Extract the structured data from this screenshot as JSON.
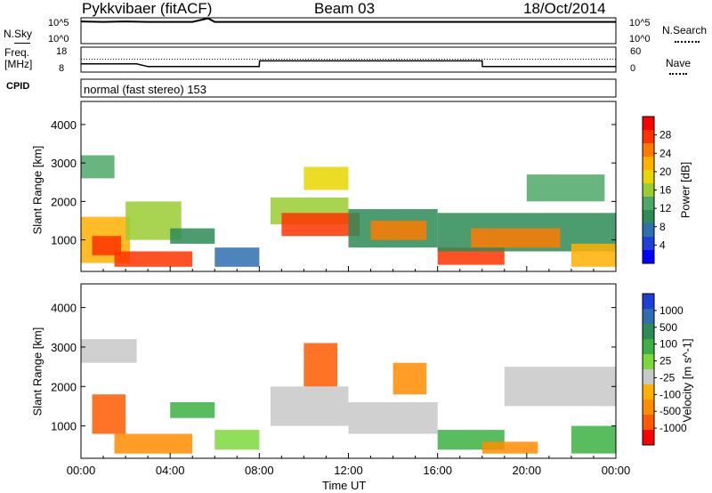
{
  "header": {
    "radar": "Pykkvibaer (fitACF)",
    "beam": "Beam 03",
    "date": "18/Oct/2014"
  },
  "nsky_panel": {
    "left_label": "N.Sky",
    "right_label": "N.Search",
    "left_ticks": [
      "10^5",
      "10^0"
    ],
    "right_ticks": [
      "10^5",
      "10^0"
    ]
  },
  "freq_panel": {
    "left_label_1": "Freq.",
    "left_label_2": "[MHz]",
    "right_label": "Nave",
    "left_ticks": [
      "18",
      "8"
    ],
    "right_ticks": [
      "60",
      "0"
    ]
  },
  "cpid": {
    "label": "CPID",
    "value": "normal (fast stereo) 153"
  },
  "power_panel": {
    "ylabel": "Slant Range [km]",
    "colorbar_label": "Power [dB]",
    "colorbar_ticks": [
      "28",
      "24",
      "20",
      "16",
      "12",
      "8",
      "4"
    ],
    "colors": [
      "#ff0000",
      "#ff3300",
      "#ff7b00",
      "#ffb000",
      "#e8d600",
      "#9acd32",
      "#4ea86a",
      "#2e8b57",
      "#2f6fb0",
      "#1f3fd9",
      "#0000ff"
    ]
  },
  "velocity_panel": {
    "ylabel": "Slant Range [km]",
    "colorbar_label": "Velocity [m s^-1]",
    "colorbar_ticks": [
      "1000",
      "500",
      "100",
      "25",
      "-25",
      "-100",
      "-500",
      "-1000"
    ],
    "colors": [
      "#1f3fd9",
      "#2f6fb0",
      "#2e8b57",
      "#3cb043",
      "#7cd83c",
      "#c8c8c8",
      "#ffb000",
      "#ff8c00",
      "#ff5a00",
      "#ff0000"
    ]
  },
  "xaxis": {
    "label": "Time UT",
    "ticks": [
      "00:00",
      "04:00",
      "08:00",
      "12:00",
      "16:00",
      "20:00",
      "00:00"
    ]
  },
  "chart_data": [
    {
      "type": "line",
      "title": "N.Sky / N.Search",
      "x": [
        0,
        1,
        2,
        3,
        4,
        5,
        5.7,
        6,
        8,
        10,
        12,
        14,
        16,
        18,
        20,
        22,
        24
      ],
      "series": [
        {
          "name": "N.Sky",
          "values": [
            4.3,
            4.2,
            4.3,
            4.2,
            4.2,
            4.2,
            4.9,
            4.2,
            4.2,
            4.2,
            4.2,
            4.2,
            4.2,
            4.2,
            4.2,
            4.2,
            4.2
          ]
        }
      ],
      "ylim": [
        0,
        5
      ]
    },
    {
      "type": "line",
      "title": "Freq. [MHz] / Nave",
      "x": [
        0,
        2.5,
        3.0,
        8.0,
        8.01,
        18.0,
        18.01,
        24
      ],
      "series": [
        {
          "name": "Freq.",
          "values": [
            11.3,
            11.3,
            10.2,
            10.2,
            12.5,
            12.5,
            10.2,
            10.2
          ]
        },
        {
          "name": "Nave",
          "values": [
            31,
            31,
            31,
            31,
            31,
            31,
            31,
            31
          ]
        }
      ],
      "ylim": [
        8,
        18
      ]
    },
    {
      "type": "heatmap",
      "title": "Power [dB]",
      "xlabel": "Time UT",
      "ylabel": "Slant Range [km]",
      "xlim": [
        0,
        24
      ],
      "ylim": [
        180,
        4600
      ],
      "colorbar": [
        4,
        8,
        12,
        16,
        20,
        24,
        28
      ],
      "bands": [
        {
          "t0": 0.0,
          "t1": 2.2,
          "r0": 400,
          "r1": 1600,
          "v": 20
        },
        {
          "t0": 0.5,
          "t1": 1.8,
          "r0": 600,
          "r1": 1100,
          "v": 27
        },
        {
          "t0": 0.0,
          "t1": 1.5,
          "r0": 2600,
          "r1": 3200,
          "v": 12
        },
        {
          "t0": 1.5,
          "t1": 5.0,
          "r0": 300,
          "r1": 700,
          "v": 26
        },
        {
          "t0": 2.0,
          "t1": 4.5,
          "r0": 1000,
          "r1": 2000,
          "v": 14
        },
        {
          "t0": 4.0,
          "t1": 6.0,
          "r0": 900,
          "r1": 1300,
          "v": 8
        },
        {
          "t0": 6.0,
          "t1": 8.0,
          "r0": 300,
          "r1": 800,
          "v": 6
        },
        {
          "t0": 8.5,
          "t1": 12.0,
          "r0": 1400,
          "r1": 2100,
          "v": 14
        },
        {
          "t0": 9.0,
          "t1": 12.5,
          "r0": 1100,
          "r1": 1700,
          "v": 26
        },
        {
          "t0": 10.0,
          "t1": 12.0,
          "r0": 2300,
          "r1": 2900,
          "v": 17
        },
        {
          "t0": 12.0,
          "t1": 16.0,
          "r0": 800,
          "r1": 1800,
          "v": 10
        },
        {
          "t0": 13.0,
          "t1": 15.5,
          "r0": 1000,
          "r1": 1500,
          "v": 25
        },
        {
          "t0": 16.0,
          "t1": 19.0,
          "r0": 350,
          "r1": 800,
          "v": 27
        },
        {
          "t0": 16.0,
          "t1": 24.0,
          "r0": 700,
          "r1": 1700,
          "v": 10
        },
        {
          "t0": 17.5,
          "t1": 21.5,
          "r0": 800,
          "r1": 1300,
          "v": 24
        },
        {
          "t0": 20.0,
          "t1": 23.5,
          "r0": 2000,
          "r1": 2700,
          "v": 12
        },
        {
          "t0": 22.0,
          "t1": 24.0,
          "r0": 300,
          "r1": 900,
          "v": 20
        }
      ]
    },
    {
      "type": "heatmap",
      "title": "Velocity [m s^-1]",
      "xlabel": "Time UT",
      "ylabel": "Slant Range [km]",
      "xlim": [
        0,
        24
      ],
      "ylim": [
        180,
        4600
      ],
      "colorbar": [
        -1000,
        -500,
        -100,
        -25,
        25,
        100,
        500,
        1000
      ],
      "bands": [
        {
          "t0": 0.0,
          "t1": 2.5,
          "r0": 2600,
          "r1": 3200,
          "v": 0
        },
        {
          "t0": 0.5,
          "t1": 2.0,
          "r0": 800,
          "r1": 1800,
          "v": -600
        },
        {
          "t0": 1.5,
          "t1": 5.0,
          "r0": 300,
          "r1": 800,
          "v": -200
        },
        {
          "t0": 4.0,
          "t1": 6.0,
          "r0": 1200,
          "r1": 1600,
          "v": 150
        },
        {
          "t0": 6.0,
          "t1": 8.0,
          "r0": 400,
          "r1": 900,
          "v": 60
        },
        {
          "t0": 8.5,
          "t1": 12.0,
          "r0": 1000,
          "r1": 2000,
          "v": 0
        },
        {
          "t0": 10.0,
          "t1": 11.5,
          "r0": 2000,
          "r1": 3100,
          "v": -500
        },
        {
          "t0": 12.0,
          "t1": 16.0,
          "r0": 800,
          "r1": 1600,
          "v": 0
        },
        {
          "t0": 14.0,
          "t1": 15.5,
          "r0": 1800,
          "r1": 2600,
          "v": -450
        },
        {
          "t0": 16.0,
          "t1": 19.0,
          "r0": 400,
          "r1": 900,
          "v": 300
        },
        {
          "t0": 18.0,
          "t1": 20.5,
          "r0": 300,
          "r1": 600,
          "v": -150
        },
        {
          "t0": 19.0,
          "t1": 24.0,
          "r0": 1500,
          "r1": 2500,
          "v": 0
        },
        {
          "t0": 22.0,
          "t1": 24.0,
          "r0": 300,
          "r1": 1000,
          "v": 400
        }
      ]
    }
  ]
}
